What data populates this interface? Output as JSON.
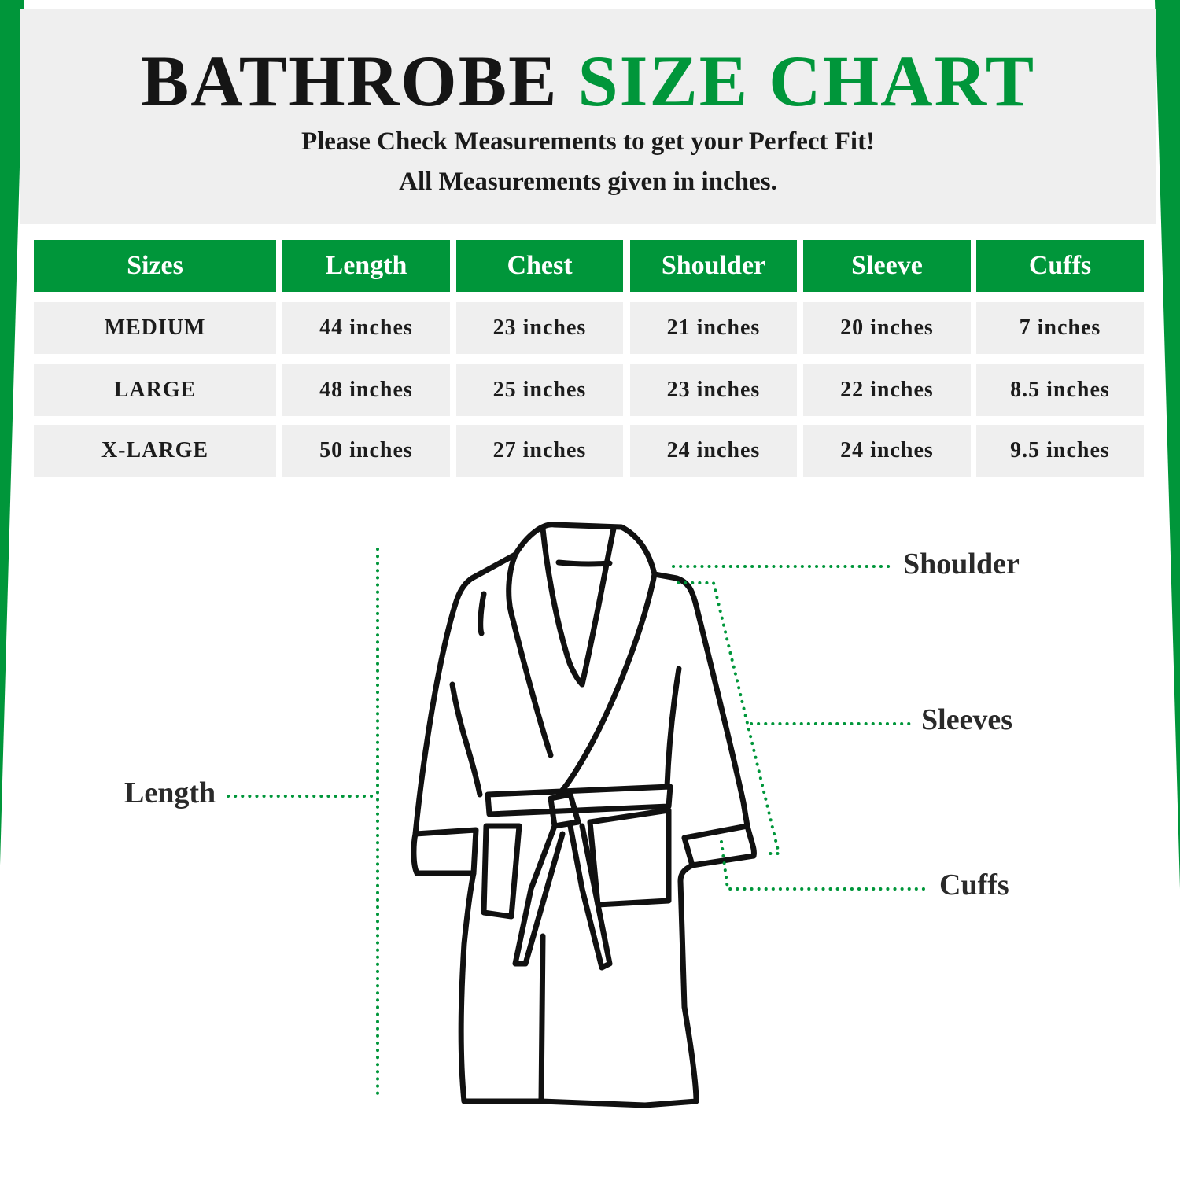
{
  "title": {
    "part1": "BATHROBE",
    "part2": "SIZE CHART"
  },
  "subtitle": {
    "line1": "Please Check Measurements to get your Perfect Fit!",
    "line2": "All Measurements given in inches."
  },
  "colors": {
    "accent": "#00963a",
    "panel": "#efefef",
    "text": "#1c1c1c"
  },
  "table": {
    "headers": [
      "Sizes",
      "Length",
      "Chest",
      "Shoulder",
      "Sleeve",
      "Cuffs"
    ],
    "rows": [
      [
        "MEDIUM",
        "44 inches",
        "23 inches",
        "21 inches",
        "20 inches",
        "7 inches"
      ],
      [
        "LARGE",
        "48 inches",
        "25 inches",
        "23 inches",
        "22 inches",
        "8.5 inches"
      ],
      [
        "X-LARGE",
        "50 inches",
        "27 inches",
        "24 inches",
        "24 inches",
        "9.5 inches"
      ]
    ]
  },
  "diagram": {
    "labels": {
      "shoulder": "Shoulder",
      "sleeves": "Sleeves",
      "cuffs": "Cuffs",
      "length": "Length"
    }
  }
}
